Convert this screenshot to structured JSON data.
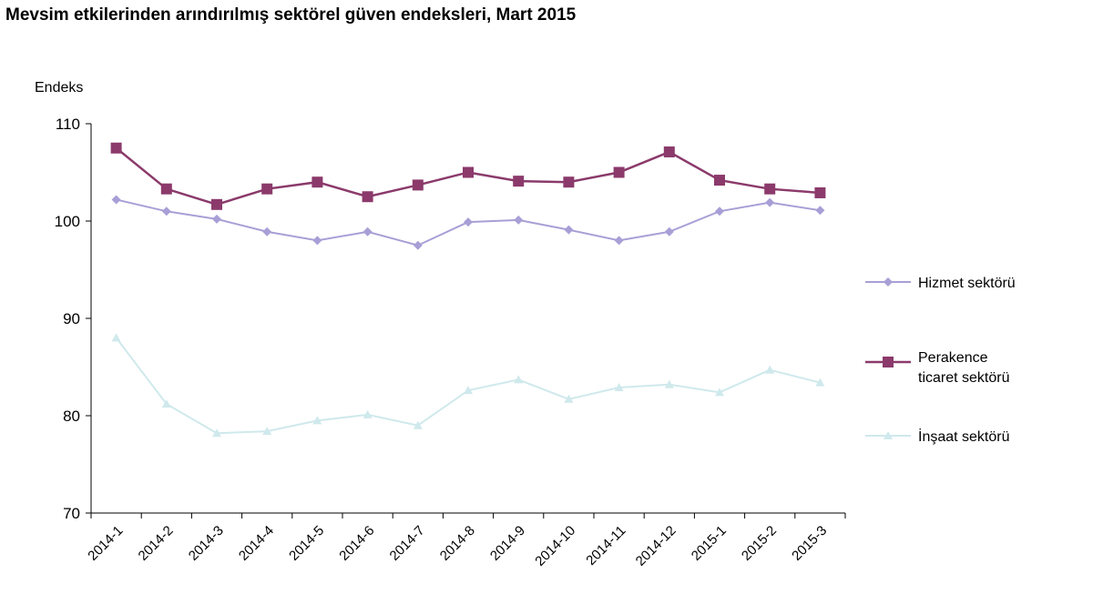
{
  "chart_data": {
    "type": "line",
    "title": "Mevsim etkilerinden arındırılmış sektörel güven endeksleri, Mart 2015",
    "ylabel": "Endeks",
    "xlabel": "",
    "ylim": [
      70,
      110
    ],
    "yticks": [
      "70",
      "80",
      "90",
      "100",
      "110"
    ],
    "categories": [
      "2014-1",
      "2014-2",
      "2014-3",
      "2014-4",
      "2014-5",
      "2014-6",
      "2014-7",
      "2014-8",
      "2014-9",
      "2014-10",
      "2014-11",
      "2014-12",
      "2015-1",
      "2015-2",
      "2015-3"
    ],
    "legend_position": "right",
    "series": [
      {
        "name": "Hizmet sektörü",
        "color": "#a89fd6",
        "marker": "diamond",
        "values": [
          102.2,
          101.0,
          100.2,
          98.9,
          98.0,
          98.9,
          97.5,
          99.9,
          100.1,
          99.1,
          98.0,
          98.9,
          101.0,
          101.9,
          101.1
        ]
      },
      {
        "name": "Perakence ticaret sektörü",
        "color": "#8b3a6b",
        "marker": "square",
        "values": [
          107.5,
          103.3,
          101.7,
          103.3,
          104.0,
          102.5,
          103.7,
          105.0,
          104.1,
          104.0,
          105.0,
          107.1,
          104.2,
          103.3,
          102.9
        ]
      },
      {
        "name": "İnşaat sektörü",
        "color": "#cfe9ec",
        "marker": "triangle",
        "values": [
          88.0,
          81.2,
          78.2,
          78.4,
          79.5,
          80.1,
          79.0,
          82.6,
          83.7,
          81.7,
          82.9,
          83.2,
          82.4,
          84.7,
          83.4
        ]
      }
    ],
    "legend_labels": [
      [
        "Hizmet sektörü"
      ],
      [
        "Perakence",
        "ticaret sektörü"
      ],
      [
        "İnşaat sektörü"
      ]
    ]
  }
}
